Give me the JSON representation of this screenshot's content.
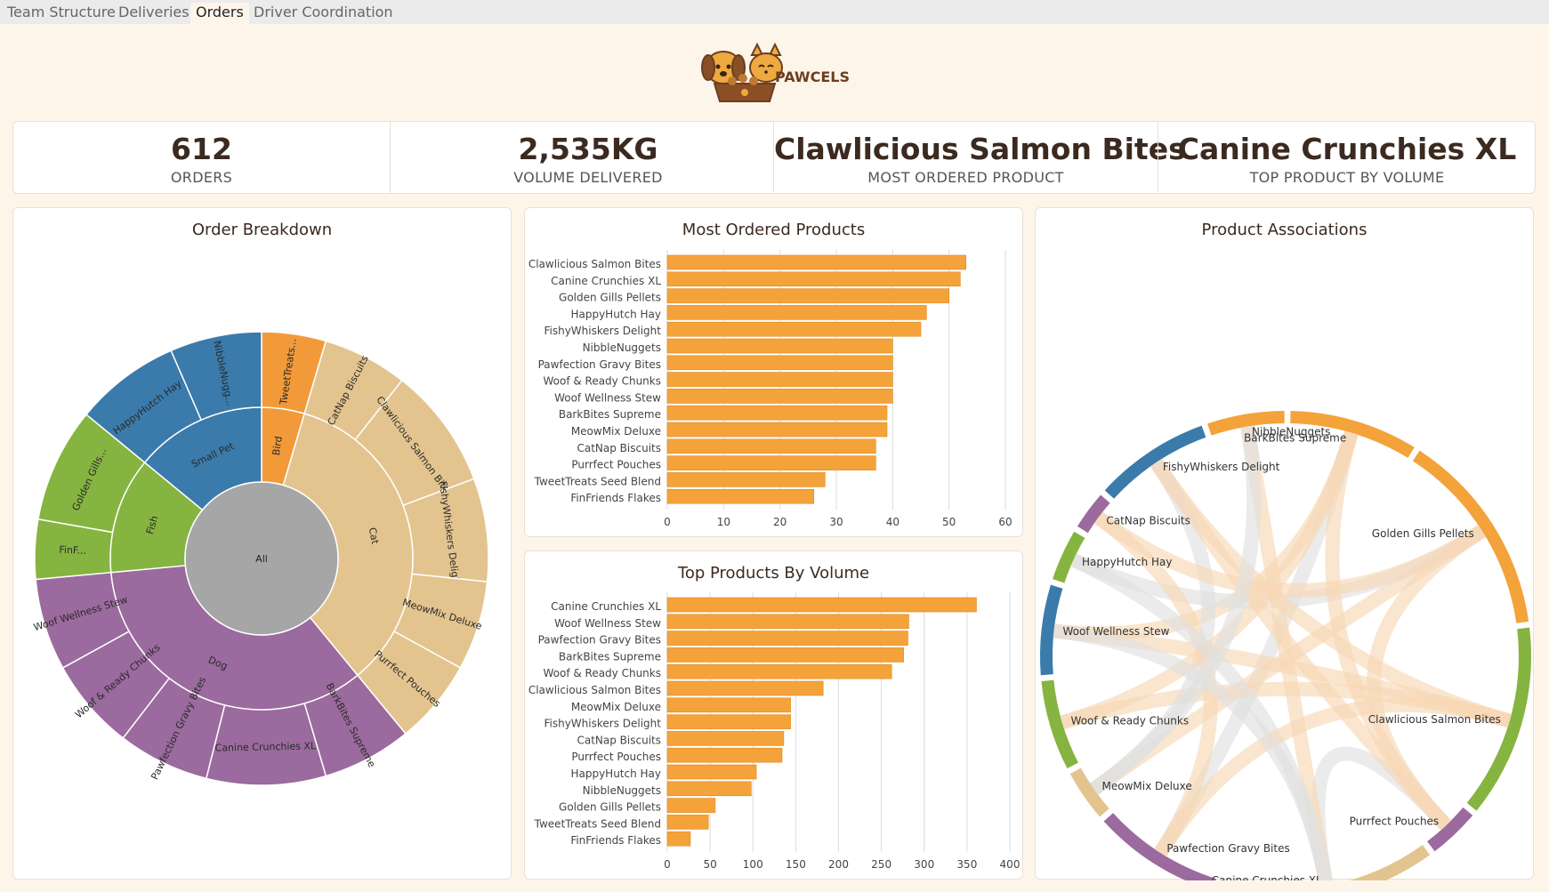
{
  "tabs": [
    {
      "label": "Team Structure",
      "active": false
    },
    {
      "label": "Deliveries",
      "active": false
    },
    {
      "label": "Orders",
      "active": true
    },
    {
      "label": "Driver Coordination",
      "active": false
    }
  ],
  "brand": {
    "name": "PAWCELS"
  },
  "kpis": [
    {
      "value": "612",
      "label": "ORDERS"
    },
    {
      "value": "2,535KG",
      "label": "VOLUME DELIVERED"
    },
    {
      "value": "Clawlicious Salmon Bites",
      "label": "MOST ORDERED PRODUCT"
    },
    {
      "value": "Canine Crunchies XL",
      "label": "TOP PRODUCT BY VOLUME"
    }
  ],
  "colors": {
    "bar": "#f4a23a",
    "dog": "#9b6a9e",
    "cat": "#e3c48f",
    "small_pet": "#3a7bab",
    "fish": "#86b440",
    "bird": "#f29a3a",
    "root": "#a6a6a6"
  },
  "chart_data": [
    {
      "type": "sunburst",
      "title": "Order Breakdown",
      "root": "All",
      "groups": [
        {
          "name": "Bird",
          "color": "#f29a3a",
          "children": [
            {
              "name": "TweetTreats...",
              "value": 28
            }
          ]
        },
        {
          "name": "Cat",
          "color": "#e3c48f",
          "children": [
            {
              "name": "CatNap Biscuits",
              "value": 37
            },
            {
              "name": "Clawlicious Salmon Bites",
              "value": 53
            },
            {
              "name": "FishyWhiskers Delight",
              "value": 45
            },
            {
              "name": "MeowMix Deluxe",
              "value": 39
            },
            {
              "name": "Purrfect Pouches",
              "value": 37
            }
          ]
        },
        {
          "name": "Dog",
          "color": "#9b6a9e",
          "children": [
            {
              "name": "BarkBites Supreme",
              "value": 39
            },
            {
              "name": "Canine Crunchies XL",
              "value": 52
            },
            {
              "name": "Pawfection Gravy Bites",
              "value": 40
            },
            {
              "name": "Woof & Ready Chunks",
              "value": 40
            },
            {
              "name": "Woof Wellness Stew",
              "value": 40
            }
          ]
        },
        {
          "name": "Fish",
          "color": "#86b440",
          "children": [
            {
              "name": "FinF...",
              "value": 26
            },
            {
              "name": "Golden Gills...",
              "value": 50
            }
          ]
        },
        {
          "name": "Small Pet",
          "color": "#3a7bab",
          "children": [
            {
              "name": "HappyHutch Hay",
              "value": 46
            },
            {
              "name": "NibbleNugg...",
              "value": 40
            }
          ]
        }
      ]
    },
    {
      "type": "bar",
      "title": "Most Ordered Products",
      "categories": [
        "Clawlicious Salmon Bites",
        "Canine Crunchies XL",
        "Golden Gills Pellets",
        "HappyHutch Hay",
        "FishyWhiskers Delight",
        "NibbleNuggets",
        "Pawfection Gravy Bites",
        "Woof & Ready Chunks",
        "Woof Wellness Stew",
        "BarkBites Supreme",
        "MeowMix Deluxe",
        "CatNap Biscuits",
        "Purrfect Pouches",
        "TweetTreats Seed Blend",
        "FinFriends Flakes"
      ],
      "values": [
        53,
        52,
        50,
        46,
        45,
        40,
        40,
        40,
        40,
        39,
        39,
        37,
        37,
        28,
        26
      ],
      "xlim": [
        0,
        60
      ],
      "ticks": [
        "0",
        "10",
        "20",
        "30",
        "40",
        "50",
        "60"
      ]
    },
    {
      "type": "bar",
      "title": "Top Products By Volume",
      "categories": [
        "Canine Crunchies XL",
        "Woof Wellness Stew",
        "Pawfection Gravy Bites",
        "BarkBites Supreme",
        "Woof & Ready Chunks",
        "Clawlicious Salmon Bites",
        "MeowMix Deluxe",
        "FishyWhiskers Delight",
        "CatNap Biscuits",
        "Purrfect Pouches",
        "HappyHutch Hay",
        "NibbleNuggets",
        "Golden Gills Pellets",
        "TweetTreats Seed Blend",
        "FinFriends Flakes"
      ],
      "values": [
        361,
        282,
        281,
        276,
        262,
        182,
        144,
        144,
        136,
        134,
        104,
        98,
        56,
        48,
        27
      ],
      "xlim": [
        0,
        400
      ],
      "ticks": [
        "0",
        "50",
        "100",
        "150",
        "200",
        "250",
        "300",
        "350",
        "400"
      ]
    },
    {
      "type": "chord",
      "title": "Product Associations",
      "nodes": [
        {
          "name": "BarkBites Supreme",
          "color": "#f4a23a"
        },
        {
          "name": "Golden Gills Pellets",
          "color": "#f4a23a"
        },
        {
          "name": "Clawlicious Salmon Bites",
          "color": "#86b440"
        },
        {
          "name": "Purrfect Pouches",
          "color": "#9b6a9e"
        },
        {
          "name": "Canine Crunchies XL",
          "color": "#e3c48f"
        },
        {
          "name": "Pawfection Gravy Bites",
          "color": "#9b6a9e"
        },
        {
          "name": "MeowMix Deluxe",
          "color": "#e3c48f"
        },
        {
          "name": "Woof & Ready Chunks",
          "color": "#86b440"
        },
        {
          "name": "Woof Wellness Stew",
          "color": "#3a7bab"
        },
        {
          "name": "HappyHutch Hay",
          "color": "#86b440"
        },
        {
          "name": "CatNap Biscuits",
          "color": "#9b6a9e"
        },
        {
          "name": "FishyWhiskers Delight",
          "color": "#3a7bab"
        },
        {
          "name": "NibbleNuggets",
          "color": "#f4a23a"
        }
      ]
    }
  ]
}
